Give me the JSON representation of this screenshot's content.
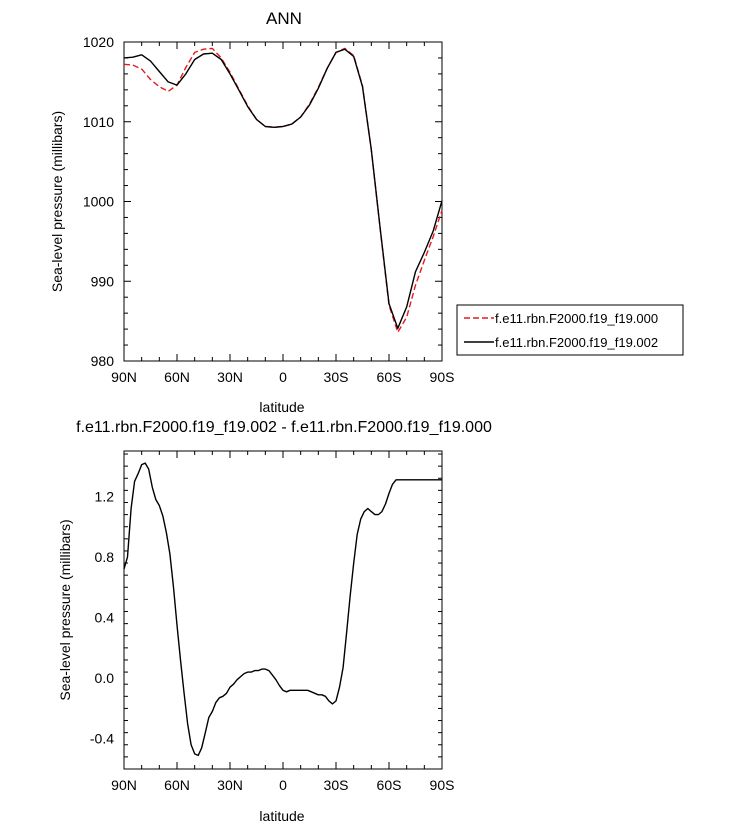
{
  "chart_data": [
    {
      "type": "line",
      "title": "ANN",
      "xlabel": "latitude",
      "ylabel": "Sea-level pressure (millibars)",
      "x_ticks": [
        {
          "value": 90,
          "label": "90N"
        },
        {
          "value": 60,
          "label": "60N"
        },
        {
          "value": 30,
          "label": "30N"
        },
        {
          "value": 0,
          "label": "0"
        },
        {
          "value": -30,
          "label": "30S"
        },
        {
          "value": -60,
          "label": "60S"
        },
        {
          "value": -90,
          "label": "90S"
        }
      ],
      "xlim": [
        90,
        -90
      ],
      "ylim": [
        980,
        1020
      ],
      "y_ticks": [
        980,
        990,
        1000,
        1010,
        1020
      ],
      "legend_position": "right",
      "x": [
        90,
        85,
        80,
        75,
        70,
        65,
        60,
        55,
        50,
        45,
        40,
        35,
        30,
        25,
        20,
        15,
        10,
        5,
        0,
        -5,
        -10,
        -15,
        -20,
        -25,
        -30,
        -35,
        -40,
        -45,
        -50,
        -55,
        -60,
        -65,
        -70,
        -75,
        -80,
        -85,
        -90
      ],
      "series": [
        {
          "name": "f.e11.rbn.F2000.f19_f19.000",
          "color": "#e41a1c",
          "dash": true,
          "values": [
            1017.2,
            1017.1,
            1016.6,
            1015.3,
            1014.4,
            1013.8,
            1014.6,
            1016.8,
            1018.7,
            1019.1,
            1019.2,
            1018.0,
            1016.2,
            1014.1,
            1012.0,
            1010.3,
            1009.4,
            1009.3,
            1009.4,
            1009.7,
            1010.6,
            1012.2,
            1014.3,
            1016.7,
            1018.7,
            1019.2,
            1018.3,
            1014.5,
            1006.5,
            996.5,
            987.0,
            983.6,
            985.5,
            989.5,
            992.6,
            995.6,
            998.9
          ]
        },
        {
          "name": "f.e11.rbn.F2000.f19_f19.002",
          "color": "#000000",
          "dash": false,
          "values": [
            1018.0,
            1018.1,
            1018.4,
            1017.6,
            1016.3,
            1015.0,
            1014.6,
            1016.0,
            1017.8,
            1018.5,
            1018.6,
            1017.8,
            1016.0,
            1014.0,
            1011.9,
            1010.3,
            1009.4,
            1009.3,
            1009.4,
            1009.7,
            1010.6,
            1012.1,
            1014.2,
            1016.7,
            1018.7,
            1019.1,
            1018.2,
            1014.4,
            1006.5,
            996.6,
            987.2,
            984.1,
            986.8,
            991.2,
            993.6,
            996.3,
            1000.1
          ]
        }
      ]
    },
    {
      "type": "line",
      "title": "f.e11.rbn.F2000.f19_f19.002 - f.e11.rbn.F2000.f19_f19.000",
      "xlabel": "latitude",
      "ylabel": "Sea-level pressure (millibars)",
      "x_ticks": [
        {
          "value": 90,
          "label": "90N"
        },
        {
          "value": 60,
          "label": "60N"
        },
        {
          "value": 30,
          "label": "30N"
        },
        {
          "value": 0,
          "label": "0"
        },
        {
          "value": -30,
          "label": "30S"
        },
        {
          "value": -60,
          "label": "60S"
        },
        {
          "value": -90,
          "label": "90S"
        }
      ],
      "xlim": [
        90,
        -90
      ],
      "ylim": [
        -0.6,
        1.5
      ],
      "y_ticks": [
        -0.4,
        0.0,
        0.4,
        0.8,
        1.2
      ],
      "y_tick_labels": [
        "-0.4",
        "0.0",
        "0.4",
        "0.8",
        "1.2"
      ],
      "x": [
        90,
        88,
        86,
        84,
        82,
        80,
        78,
        76,
        74,
        72,
        70,
        68,
        66,
        64,
        62,
        60,
        58,
        56,
        54,
        52,
        50,
        48,
        46,
        44,
        42,
        40,
        38,
        36,
        34,
        32,
        30,
        28,
        26,
        24,
        22,
        20,
        18,
        16,
        14,
        12,
        10,
        8,
        6,
        4,
        2,
        0,
        -2,
        -4,
        -6,
        -8,
        -10,
        -12,
        -14,
        -16,
        -18,
        -20,
        -22,
        -24,
        -26,
        -28,
        -30,
        -32,
        -34,
        -36,
        -38,
        -40,
        -42,
        -44,
        -46,
        -48,
        -50,
        -52,
        -54,
        -56,
        -58,
        -60,
        -62,
        -64,
        -66,
        -68,
        -70,
        -72,
        -74,
        -76,
        -78,
        -80,
        -82,
        -84,
        -86,
        -88,
        -90
      ],
      "series": [
        {
          "name": "",
          "color": "#000000",
          "dash": false,
          "values": [
            0.72,
            0.8,
            1.12,
            1.3,
            1.35,
            1.41,
            1.42,
            1.38,
            1.26,
            1.18,
            1.14,
            1.07,
            0.96,
            0.82,
            0.6,
            0.35,
            0.12,
            -0.1,
            -0.3,
            -0.44,
            -0.5,
            -0.51,
            -0.46,
            -0.36,
            -0.26,
            -0.22,
            -0.16,
            -0.13,
            -0.12,
            -0.1,
            -0.06,
            -0.04,
            -0.01,
            0.01,
            0.03,
            0.04,
            0.04,
            0.05,
            0.05,
            0.06,
            0.06,
            0.05,
            0.02,
            -0.01,
            -0.05,
            -0.08,
            -0.09,
            -0.08,
            -0.08,
            -0.08,
            -0.08,
            -0.08,
            -0.08,
            -0.09,
            -0.1,
            -0.11,
            -0.11,
            -0.12,
            -0.15,
            -0.17,
            -0.15,
            -0.06,
            0.07,
            0.3,
            0.54,
            0.76,
            0.95,
            1.05,
            1.1,
            1.12,
            1.1,
            1.08,
            1.08,
            1.1,
            1.15,
            1.22,
            1.28,
            1.31,
            1.31,
            1.31,
            1.31,
            1.31,
            1.31,
            1.31,
            1.31,
            1.31,
            1.31,
            1.31,
            1.31,
            1.31,
            1.31
          ]
        }
      ]
    }
  ]
}
